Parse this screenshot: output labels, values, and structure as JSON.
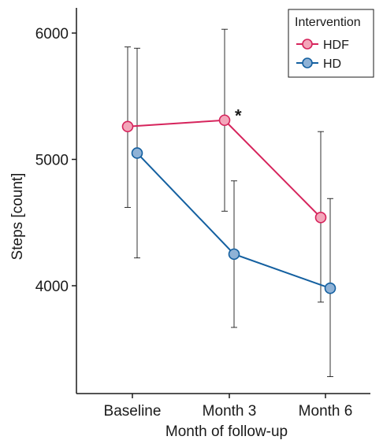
{
  "chart_data": {
    "type": "line",
    "xlabel": "Month of follow-up",
    "ylabel": "Steps [count]",
    "categories": [
      "Baseline",
      "Month 3",
      "Month 6"
    ],
    "ylim": [
      3000,
      6200
    ],
    "yticks": [
      4000,
      5000,
      6000
    ],
    "legend": {
      "title": "Intervention",
      "placement": "top-right"
    },
    "series": [
      {
        "name": "HDF",
        "color": "#d6245c",
        "marker_fill": "#f3a6ba",
        "values": [
          5260,
          5310,
          4540
        ],
        "error_low": [
          4620,
          4590,
          3870
        ],
        "error_high": [
          5890,
          6030,
          5220
        ]
      },
      {
        "name": "HD",
        "color": "#1460a0",
        "marker_fill": "#8fb2d6",
        "values": [
          5050,
          4250,
          3980
        ],
        "error_low": [
          4220,
          3670,
          3280
        ],
        "error_high": [
          5880,
          4830,
          4690
        ]
      }
    ],
    "annotations": [
      {
        "text": "*",
        "category": "Month 3",
        "series": "HDF"
      }
    ],
    "grid": false
  }
}
